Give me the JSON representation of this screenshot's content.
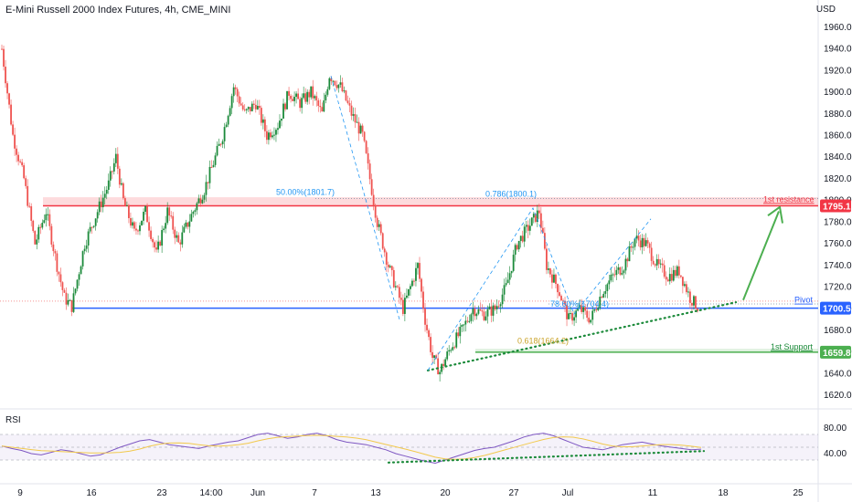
{
  "header": {
    "title": "E-Mini Russell 2000 Index Futures, 4h, CME_MINI",
    "currency": "USD"
  },
  "colors": {
    "up": "#26a69a",
    "up_dark": "#1b8a3a",
    "down": "#ef5350",
    "resistance": "#f23645",
    "pivot": "#2962ff",
    "support": "#4caf50",
    "fib": "#2196f3",
    "rsi": "#7e57c2",
    "rsi_ma": "#f2c94c"
  },
  "chart_data": {
    "type": "candlestick",
    "title": "E-Mini Russell 2000 Index Futures, 4h, CME_MINI",
    "ylim": [
      1610,
      1970
    ],
    "y_ticks": [
      1620,
      1640,
      1660,
      1680,
      1700,
      1720,
      1740,
      1760,
      1780,
      1800,
      1820,
      1840,
      1860,
      1880,
      1900,
      1920,
      1940,
      1960
    ],
    "x_tick_labels": [
      "9",
      "16",
      "23",
      "14:00",
      "Jun",
      "7",
      "13",
      "20",
      "27",
      "Jul",
      "11",
      "18",
      "25"
    ],
    "price_path": [
      {
        "i": 0,
        "p": 1940
      },
      {
        "i": 6,
        "p": 1860
      },
      {
        "i": 12,
        "p": 1820
      },
      {
        "i": 18,
        "p": 1760
      },
      {
        "i": 24,
        "p": 1790
      },
      {
        "i": 30,
        "p": 1740
      },
      {
        "i": 34,
        "p": 1710
      },
      {
        "i": 38,
        "p": 1702
      },
      {
        "i": 45,
        "p": 1760
      },
      {
        "i": 52,
        "p": 1790
      },
      {
        "i": 58,
        "p": 1815
      },
      {
        "i": 62,
        "p": 1840
      },
      {
        "i": 66,
        "p": 1800
      },
      {
        "i": 72,
        "p": 1770
      },
      {
        "i": 78,
        "p": 1790
      },
      {
        "i": 84,
        "p": 1750
      },
      {
        "i": 90,
        "p": 1790
      },
      {
        "i": 96,
        "p": 1760
      },
      {
        "i": 104,
        "p": 1790
      },
      {
        "i": 110,
        "p": 1810
      },
      {
        "i": 116,
        "p": 1840
      },
      {
        "i": 120,
        "p": 1860
      },
      {
        "i": 126,
        "p": 1905
      },
      {
        "i": 132,
        "p": 1880
      },
      {
        "i": 138,
        "p": 1890
      },
      {
        "i": 144,
        "p": 1860
      },
      {
        "i": 150,
        "p": 1870
      },
      {
        "i": 156,
        "p": 1900
      },
      {
        "i": 162,
        "p": 1890
      },
      {
        "i": 168,
        "p": 1900
      },
      {
        "i": 174,
        "p": 1880
      },
      {
        "i": 178,
        "p": 1916
      },
      {
        "i": 184,
        "p": 1905
      },
      {
        "i": 190,
        "p": 1880
      },
      {
        "i": 196,
        "p": 1860
      },
      {
        "i": 200,
        "p": 1820
      },
      {
        "i": 204,
        "p": 1780
      },
      {
        "i": 210,
        "p": 1740
      },
      {
        "i": 214,
        "p": 1720
      },
      {
        "i": 218,
        "p": 1700
      },
      {
        "i": 222,
        "p": 1720
      },
      {
        "i": 226,
        "p": 1740
      },
      {
        "i": 230,
        "p": 1690
      },
      {
        "i": 234,
        "p": 1655
      },
      {
        "i": 238,
        "p": 1642
      },
      {
        "i": 244,
        "p": 1665
      },
      {
        "i": 250,
        "p": 1680
      },
      {
        "i": 256,
        "p": 1700
      },
      {
        "i": 262,
        "p": 1695
      },
      {
        "i": 268,
        "p": 1700
      },
      {
        "i": 274,
        "p": 1720
      },
      {
        "i": 280,
        "p": 1760
      },
      {
        "i": 286,
        "p": 1775
      },
      {
        "i": 292,
        "p": 1790
      },
      {
        "i": 296,
        "p": 1740
      },
      {
        "i": 302,
        "p": 1720
      },
      {
        "i": 308,
        "p": 1690
      },
      {
        "i": 314,
        "p": 1700
      },
      {
        "i": 320,
        "p": 1690
      },
      {
        "i": 326,
        "p": 1715
      },
      {
        "i": 332,
        "p": 1730
      },
      {
        "i": 338,
        "p": 1740
      },
      {
        "i": 344,
        "p": 1765
      },
      {
        "i": 350,
        "p": 1760
      },
      {
        "i": 356,
        "p": 1740
      },
      {
        "i": 362,
        "p": 1730
      },
      {
        "i": 368,
        "p": 1735
      },
      {
        "i": 374,
        "p": 1710
      },
      {
        "i": 378,
        "p": 1702
      }
    ],
    "levels": [
      {
        "name": "1st resistance",
        "value": 1795.1
      },
      {
        "name": "Pivot",
        "value": 1700.5
      },
      {
        "name": "1st Support",
        "value": 1659.8
      }
    ],
    "fib_annotations": [
      "50.00%(1801.7)",
      "0.786(1800.1)",
      "78.60%(1704.4)",
      "0.618(1664.2)"
    ],
    "rsi": {
      "label": "RSI",
      "ylim": [
        0,
        100
      ],
      "ticks": [
        40,
        80
      ],
      "band": [
        30,
        70
      ],
      "values": [
        52,
        48,
        45,
        40,
        38,
        42,
        46,
        44,
        40,
        36,
        38,
        44,
        50,
        55,
        60,
        62,
        58,
        54,
        52,
        50,
        48,
        52,
        55,
        58,
        60,
        65,
        70,
        72,
        68,
        64,
        66,
        70,
        72,
        68,
        62,
        58,
        56,
        54,
        50,
        46,
        40,
        36,
        32,
        28,
        25,
        30,
        35,
        40,
        45,
        48,
        50,
        55,
        60,
        66,
        70,
        72,
        68,
        62,
        56,
        50,
        48,
        46,
        50,
        54,
        56,
        58,
        55,
        52,
        50,
        48,
        46,
        47
      ]
    }
  },
  "labels": {
    "resistance": "1st resistance",
    "resistance_value": "1795.1",
    "pivot": "Pivot",
    "pivot_value": "1700.5",
    "support": "1st Support",
    "support_value": "1659.8",
    "fib1": "50.00%(1801.7)",
    "fib2": "0.786(1800.1)",
    "fib3": "78.60%(1704.4)",
    "fib4": "0.618(1664.2)",
    "rsi": "RSI"
  }
}
